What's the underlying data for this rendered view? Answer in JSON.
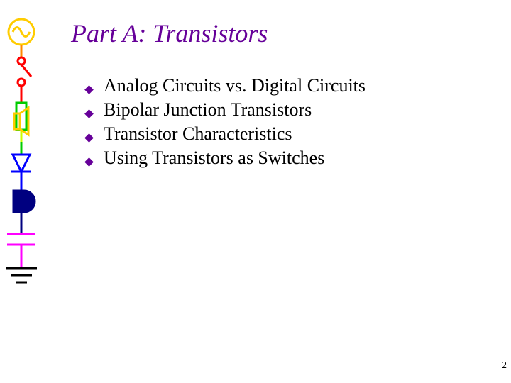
{
  "title": {
    "text": "Part A: Transistors",
    "color": "#660099",
    "fontsize": 36
  },
  "bullets": {
    "items": [
      "Analog Circuits vs. Digital Circuits",
      "Bipolar Junction Transistors",
      "Transistor Characteristics",
      "Using Transistors as Switches"
    ],
    "text_color": "#000000",
    "text_fontsize": 26,
    "diamond_color": "#660099",
    "diamond_size": 9
  },
  "page_number": {
    "value": "2",
    "color": "#000000",
    "fontsize": 14
  },
  "sidebar_graphic": {
    "colors": {
      "sine_circle": "#ffcc00",
      "switch": "#ff0000",
      "speaker": "#ffcc00",
      "resistor": "#00cc00",
      "diode": "#0000ff",
      "and_gate": "#000080",
      "capacitor": "#ff00ff",
      "ground": "#000000",
      "wire_top": "#ff8800",
      "wire_upper": "#ff0000",
      "wire_mid": "#ccff00",
      "wire_low1": "#00cc00",
      "wire_low2": "#0000ff",
      "wire_low3": "#000080",
      "wire_bottom": "#ff00ff"
    },
    "stroke_width": 3
  },
  "background_color": "#ffffff"
}
